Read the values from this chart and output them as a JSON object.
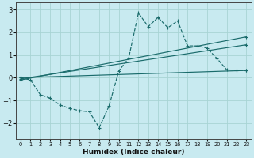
{
  "xlabel": "Humidex (Indice chaleur)",
  "ylabel": "",
  "bg_color": "#c8eaf0",
  "grid_color": "#a8d4d4",
  "line_color": "#1a6b6b",
  "xlim": [
    -0.5,
    23.5
  ],
  "ylim": [
    -2.7,
    3.3
  ],
  "xticks": [
    0,
    1,
    2,
    3,
    4,
    5,
    6,
    7,
    8,
    9,
    10,
    11,
    12,
    13,
    14,
    15,
    16,
    17,
    18,
    19,
    20,
    21,
    22,
    23
  ],
  "yticks": [
    -2,
    -1,
    0,
    1,
    2,
    3
  ],
  "line1_x": [
    0,
    1,
    2,
    3,
    4,
    5,
    6,
    7,
    8,
    9,
    10,
    11,
    12,
    13,
    14,
    15,
    16,
    17,
    18,
    19,
    20,
    21,
    22,
    23
  ],
  "line1_y": [
    0.0,
    -0.1,
    -0.75,
    -0.9,
    -1.2,
    -1.35,
    -1.45,
    -1.5,
    -2.2,
    -1.25,
    0.3,
    0.85,
    2.85,
    2.25,
    2.65,
    2.2,
    2.5,
    1.4,
    1.4,
    1.3,
    0.85,
    0.35,
    0.32,
    0.32
  ],
  "line2_x": [
    0,
    23
  ],
  "line2_y": [
    0.0,
    0.32
  ],
  "line3_x": [
    0,
    23
  ],
  "line3_y": [
    -0.05,
    1.45
  ],
  "line4_x": [
    0,
    23
  ],
  "line4_y": [
    -0.1,
    1.8
  ]
}
